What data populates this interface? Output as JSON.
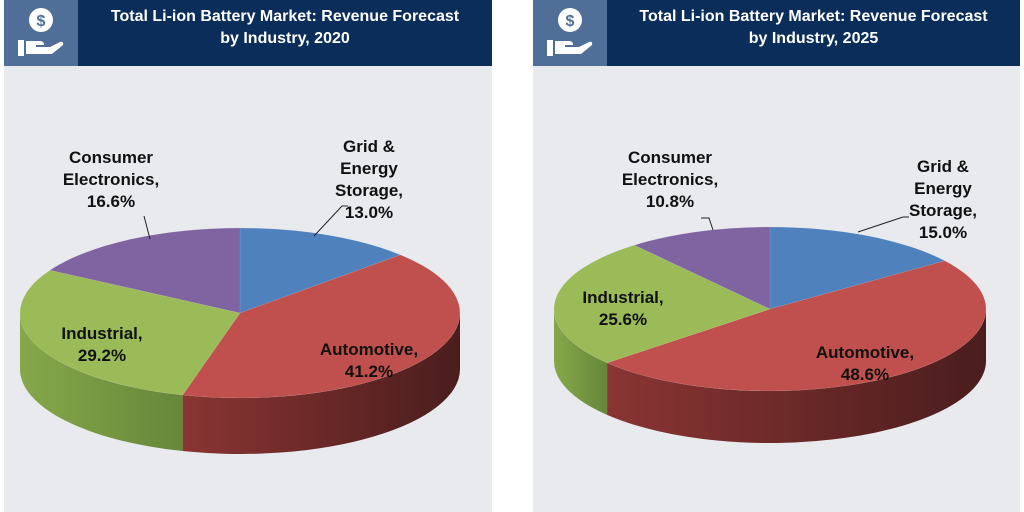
{
  "chart_data": [
    {
      "type": "pie",
      "title": "Total Li-ion Battery Market: Revenue Forecast by Industry, 2020",
      "title_lines": [
        "Total Li-ion Battery Market: Revenue Forecast",
        "by Industry, 2020"
      ],
      "categories": [
        "Grid & Energy Storage",
        "Automotive",
        "Industrial",
        "Consumer Electronics"
      ],
      "values": [
        13.0,
        41.2,
        29.2,
        16.6
      ],
      "labels": [
        [
          "Grid &",
          "Energy",
          "Storage,",
          "13.0%"
        ],
        [
          "Automotive,",
          "41.2%"
        ],
        [
          "Industrial,",
          "29.2%"
        ],
        [
          "Consumer",
          "Electronics,",
          "16.6%"
        ]
      ],
      "unit": "%",
      "style": "3d"
    },
    {
      "type": "pie",
      "title": "Total Li-ion Battery Market: Revenue Forecast by Industry, 2025",
      "title_lines": [
        "Total Li-ion Battery Market: Revenue Forecast",
        "by Industry, 2025"
      ],
      "categories": [
        "Grid & Energy Storage",
        "Automotive",
        "Industrial",
        "Consumer Electronics"
      ],
      "values": [
        15.0,
        48.6,
        25.6,
        10.8
      ],
      "labels": [
        [
          "Grid   &",
          "Energy",
          "Storage,",
          "15.0%"
        ],
        [
          "Automotive,",
          "48.6%"
        ],
        [
          "Industrial,",
          "25.6%"
        ],
        [
          "Consumer",
          "Electronics,",
          "10.8%"
        ]
      ],
      "unit": "%",
      "style": "3d"
    }
  ],
  "colors": {
    "Grid & Energy Storage": "#4f81bd",
    "Automotive": "#c0504d",
    "Industrial": "#9bbb59",
    "Consumer Electronics": "#8064a2"
  },
  "side_colors": {
    "Automotive": [
      "#8a3533",
      "#4a1d1d"
    ],
    "Industrial": [
      "#86a84a",
      "#66873a"
    ],
    "Grid & Energy Storage": [
      "#3a6190",
      "#2a4a70"
    ],
    "Consumer Electronics": [
      "#5f4a7a",
      "#4a3a60"
    ]
  },
  "header_icon": "money-hand-icon"
}
